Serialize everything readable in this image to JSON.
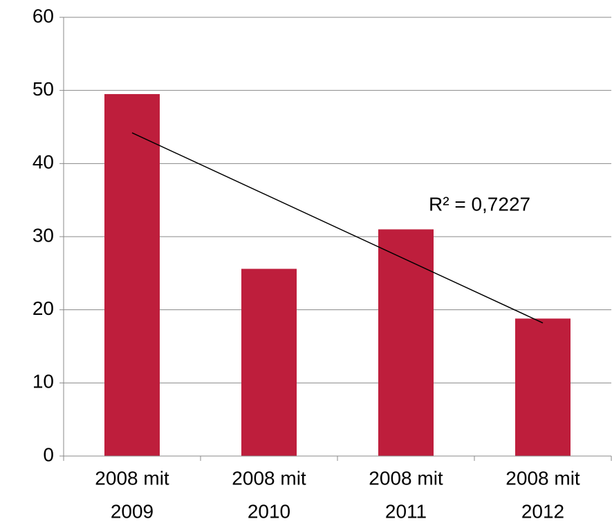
{
  "chart_data": {
    "type": "bar",
    "categories": [
      [
        "2008 mit",
        "2009"
      ],
      [
        "2008 mit",
        "2010"
      ],
      [
        "2008 mit",
        "2011"
      ],
      [
        "2008 mit",
        "2012"
      ]
    ],
    "values": [
      49.5,
      25.6,
      31,
      18.8
    ],
    "color": "#be1e3c",
    "ylim": [
      0,
      60
    ],
    "yticks": [
      0,
      10,
      20,
      30,
      40,
      50,
      60
    ],
    "grid": true,
    "trendline": {
      "start": 44.2,
      "end": 18.2,
      "label": "R² = 0,7227"
    }
  }
}
